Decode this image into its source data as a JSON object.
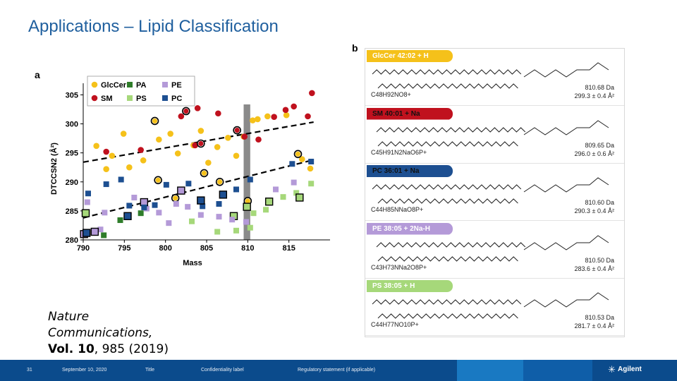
{
  "slide": {
    "title": "Applications – Lipid Classification",
    "panel_a": "a",
    "panel_b": "b"
  },
  "citation": {
    "journal_line1": "Nature",
    "journal_line2": "Communications,",
    "vol_prefix": "Vol. 10",
    "vol_rest": ", 985 (2019)"
  },
  "chart_data": {
    "type": "scatter",
    "title": "",
    "xlabel": "Mass",
    "ylabel": "DTCCSN2 (Å²)",
    "xlim": [
      790,
      820
    ],
    "ylim": [
      280,
      307
    ],
    "xticks": [
      790,
      795,
      800,
      805,
      810,
      815
    ],
    "yticks": [
      280,
      285,
      290,
      295,
      300,
      305
    ],
    "legend_position": "top-left",
    "highlight_band_x": [
      809.5,
      810.3
    ],
    "series": [
      {
        "name": "GlcCer",
        "color": "#f5c11a",
        "marker": "circle-filled",
        "points": [
          [
            791.6,
            296.2
          ],
          [
            792.8,
            292.2
          ],
          [
            793.5,
            294.5
          ],
          [
            794.9,
            298.3
          ],
          [
            795.6,
            292.5
          ],
          [
            797.3,
            293.7
          ],
          [
            799.2,
            297.3
          ],
          [
            800.6,
            298.3
          ],
          [
            801.5,
            294.9
          ],
          [
            803.4,
            296.3
          ],
          [
            804.3,
            298.8
          ],
          [
            805.2,
            293.3
          ],
          [
            806.3,
            296.0
          ],
          [
            807.6,
            297.6
          ],
          [
            808.6,
            294.5
          ],
          [
            809.5,
            297.8
          ],
          [
            810.6,
            300.6
          ],
          [
            811.2,
            300.8
          ],
          [
            812.4,
            301.3
          ],
          [
            814.7,
            301.5
          ],
          [
            816.6,
            293.9
          ],
          [
            817.6,
            292.3
          ]
        ]
      },
      {
        "name": "GlcCer",
        "color": "#f5c11a",
        "marker": "circle-outline",
        "points": [
          [
            798.7,
            300.5
          ],
          [
            799.1,
            290.3
          ],
          [
            801.2,
            287.2
          ],
          [
            804.7,
            291.5
          ],
          [
            806.6,
            290.0
          ],
          [
            810.0,
            286.7
          ],
          [
            816.1,
            294.8
          ]
        ]
      },
      {
        "name": "SM",
        "color": "#c0111e",
        "marker": "circle-filled",
        "points": [
          [
            792.8,
            295.2
          ],
          [
            797.0,
            295.5
          ],
          [
            801.9,
            301.3
          ],
          [
            803.6,
            296.3
          ],
          [
            803.9,
            302.7
          ],
          [
            806.4,
            301.8
          ],
          [
            809.6,
            297.8
          ],
          [
            811.3,
            297.3
          ],
          [
            813.2,
            301.2
          ],
          [
            814.6,
            302.4
          ],
          [
            815.6,
            303.0
          ],
          [
            817.3,
            301.3
          ],
          [
            817.8,
            305.3
          ]
        ]
      },
      {
        "name": "SM",
        "color": "#c0111e",
        "marker": "circle-outline",
        "points": [
          [
            802.5,
            302.2
          ],
          [
            804.3,
            296.6
          ],
          [
            808.7,
            298.9
          ]
        ]
      },
      {
        "name": "PA",
        "color": "#2f7d2a",
        "marker": "square-filled",
        "points": [
          [
            792.5,
            280.8
          ],
          [
            794.5,
            283.4
          ],
          [
            797.0,
            284.6
          ]
        ]
      },
      {
        "name": "PS",
        "color": "#a6d87a",
        "marker": "square-filled",
        "points": [
          [
            803.2,
            283.2
          ],
          [
            806.3,
            281.4
          ],
          [
            808.6,
            281.6
          ],
          [
            810.3,
            282.1
          ],
          [
            810.7,
            284.6
          ],
          [
            812.2,
            285.2
          ],
          [
            814.3,
            287.4
          ],
          [
            815.9,
            288.1
          ],
          [
            817.7,
            289.7
          ]
        ]
      },
      {
        "name": "PS",
        "color": "#a6d87a",
        "marker": "square-outline",
        "points": [
          [
            790.3,
            284.6
          ],
          [
            808.3,
            284.1
          ],
          [
            809.9,
            285.7
          ],
          [
            812.6,
            286.6
          ],
          [
            816.3,
            287.3
          ]
        ]
      },
      {
        "name": "PE",
        "color": "#b49ad8",
        "marker": "square-filled",
        "points": [
          [
            790.5,
            286.5
          ],
          [
            792.1,
            281.8
          ],
          [
            792.6,
            284.7
          ],
          [
            796.2,
            287.3
          ],
          [
            797.7,
            285.4
          ],
          [
            799.2,
            284.7
          ],
          [
            800.4,
            282.9
          ],
          [
            801.3,
            286.2
          ],
          [
            802.7,
            285.7
          ],
          [
            804.3,
            284.3
          ],
          [
            806.5,
            284.0
          ],
          [
            808.1,
            283.5
          ],
          [
            809.8,
            283.1
          ],
          [
            813.4,
            288.7
          ],
          [
            815.6,
            289.9
          ]
        ]
      },
      {
        "name": "PE",
        "color": "#b49ad8",
        "marker": "square-outline",
        "points": [
          [
            790.1,
            281.0
          ],
          [
            791.4,
            281.4
          ],
          [
            797.4,
            286.5
          ],
          [
            801.9,
            288.5
          ]
        ]
      },
      {
        "name": "PC",
        "color": "#1d4f91",
        "marker": "square-filled",
        "points": [
          [
            790.6,
            288.0
          ],
          [
            792.8,
            289.6
          ],
          [
            794.6,
            290.4
          ],
          [
            795.6,
            285.9
          ],
          [
            797.4,
            285.6
          ],
          [
            798.7,
            286.0
          ],
          [
            800.1,
            289.5
          ],
          [
            802.8,
            289.7
          ],
          [
            804.5,
            285.8
          ],
          [
            806.5,
            286.2
          ],
          [
            808.6,
            288.7
          ],
          [
            810.3,
            290.4
          ],
          [
            815.4,
            293.1
          ],
          [
            817.7,
            293.5
          ]
        ]
      },
      {
        "name": "PC",
        "color": "#1d4f91",
        "marker": "square-outline",
        "points": [
          [
            790.4,
            281.2
          ],
          [
            795.4,
            284.1
          ],
          [
            804.3,
            286.8
          ],
          [
            807.0,
            287.8
          ]
        ]
      }
    ],
    "legend": [
      {
        "name": "GlcCer",
        "color": "#f5c11a",
        "marker": "circle-filled"
      },
      {
        "name": "PA",
        "color": "#2f7d2a",
        "marker": "square-filled"
      },
      {
        "name": "PE",
        "color": "#b49ad8",
        "marker": "square-filled"
      },
      {
        "name": "SM",
        "color": "#c0111e",
        "marker": "circle-filled"
      },
      {
        "name": "PS",
        "color": "#a6d87a",
        "marker": "square-filled"
      },
      {
        "name": "PC",
        "color": "#1d4f91",
        "marker": "square-filled"
      }
    ],
    "trend_lines": [
      {
        "x": [
          790,
          818
        ],
        "y": [
          293.4,
          300.3
        ]
      },
      {
        "x": [
          790,
          818
        ],
        "y": [
          283.8,
          293.8
        ]
      }
    ]
  },
  "lipids": [
    {
      "tag": "GlcCer 42:02 + H",
      "color": "#f5c11a",
      "text_color": "dark",
      "formula": "C48H92NO8+",
      "mass": "810.68 Da",
      "ccs": "299.3 ± 0.4 Å²"
    },
    {
      "tag": "SM 40:01 + Na",
      "color": "#c0111e",
      "text_color": "light",
      "formula": "C45H91N2NaO6P+",
      "mass": "809.65 Da",
      "ccs": "296.0 ± 0.6 Å²"
    },
    {
      "tag": "PC 36:01 + Na",
      "color": "#1d4f91",
      "text_color": "light",
      "formula": "C44H85NNaO8P+",
      "mass": "810.60 Da",
      "ccs": "290.3 ± 0.4 Å²"
    },
    {
      "tag": "PE 38:05 + 2Na-H",
      "color": "#b49ad8",
      "text_color": "dark",
      "formula": "C43H73NNa2O8P+",
      "mass": "810.50 Da",
      "ccs": "283.6 ± 0.4 Å²"
    },
    {
      "tag": "PS 38:05 + H",
      "color": "#a6d87a",
      "text_color": "dark",
      "formula": "C44H77NO10P+",
      "mass": "810.53 Da",
      "ccs": "281.7 ± 0.4 Å²"
    }
  ],
  "footer": {
    "page": "31",
    "date": "September 10, 2020",
    "title": "Title",
    "confidentiality": "Confidentiality label",
    "regulatory": "Regulatory statement (if applicable)",
    "brand": "Agilent"
  }
}
